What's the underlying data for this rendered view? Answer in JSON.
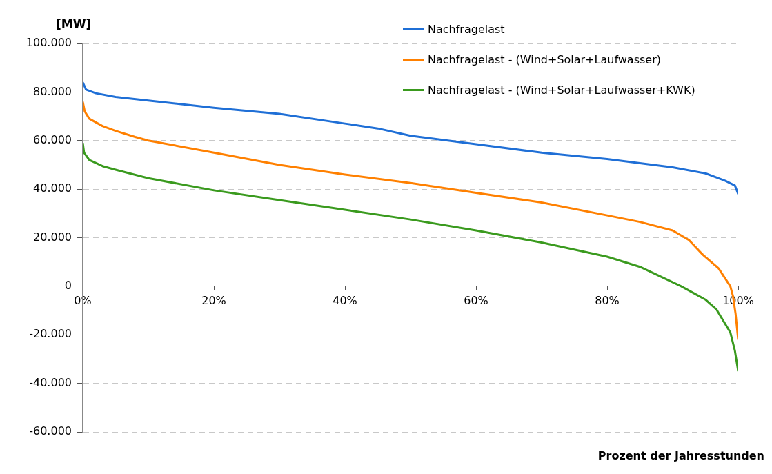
{
  "chart_data": {
    "type": "line",
    "xlabel": "Prozent der Jahresstunden",
    "ylabel": "[MW]",
    "xlim": [
      0,
      100
    ],
    "xticks": [
      {
        "value": 0,
        "label": "0%"
      },
      {
        "value": 20,
        "label": "20%"
      },
      {
        "value": 40,
        "label": "40%"
      },
      {
        "value": 60,
        "label": "60%"
      },
      {
        "value": 80,
        "label": "80%"
      },
      {
        "value": 100,
        "label": "100%"
      }
    ],
    "ylim": [
      -60000,
      100000
    ],
    "yticks": [
      {
        "value": -60000,
        "label": "-60.000"
      },
      {
        "value": -40000,
        "label": "-40.000"
      },
      {
        "value": -20000,
        "label": "-20.000"
      },
      0,
      {
        "value": 20000,
        "label": "20.000"
      },
      {
        "value": 40000,
        "label": "40.000"
      },
      {
        "value": 60000,
        "label": "60.000"
      },
      {
        "value": 80000,
        "label": "80.000"
      },
      {
        "value": 100000,
        "label": "100.000"
      }
    ],
    "grid": "y",
    "legend": "top right",
    "marker": "none",
    "line_style": "solid",
    "series": [
      {
        "name": "Nachfragelast",
        "color": "#1f6fd6",
        "x": [
          0,
          0.5,
          2,
          5,
          10,
          20,
          30,
          40,
          45,
          50,
          60,
          70,
          80,
          90,
          95,
          98,
          99.5,
          100
        ],
        "values": [
          84000,
          81000,
          79500,
          78000,
          76500,
          73500,
          71000,
          67000,
          65000,
          62000,
          58500,
          55000,
          52400,
          49000,
          46500,
          43500,
          41500,
          38000
        ]
      },
      {
        "name": "Nachfragelast - (Wind+Solar+Laufwasser)",
        "color": "#ff8000",
        "x": [
          0,
          0.3,
          1,
          3,
          5,
          8,
          10,
          20,
          30,
          40,
          50,
          60,
          70,
          80,
          85,
          90,
          92.5,
          94.6,
          97,
          98.8,
          99.2,
          99.6,
          100
        ],
        "values": [
          76000,
          72000,
          69000,
          66000,
          64000,
          61500,
          60000,
          55000,
          50000,
          46000,
          42500,
          38500,
          34500,
          29200,
          26500,
          23000,
          19000,
          13000,
          7400,
          0,
          -4000,
          -11300,
          -22000
        ]
      },
      {
        "name": "Nachfragelast - (Wind+Solar+Laufwasser+KWK)",
        "color": "#3a9a1e",
        "x": [
          0,
          0.2,
          1,
          3,
          5,
          10,
          20,
          30,
          40,
          50,
          60,
          70,
          80,
          85,
          91.3,
          95,
          96.7,
          98.8,
          99.5,
          100
        ],
        "values": [
          59000,
          55000,
          52000,
          49500,
          48000,
          44500,
          39500,
          35500,
          31500,
          27500,
          23000,
          18000,
          12200,
          8000,
          0,
          -5500,
          -9600,
          -19000,
          -26600,
          -35000
        ]
      }
    ]
  }
}
